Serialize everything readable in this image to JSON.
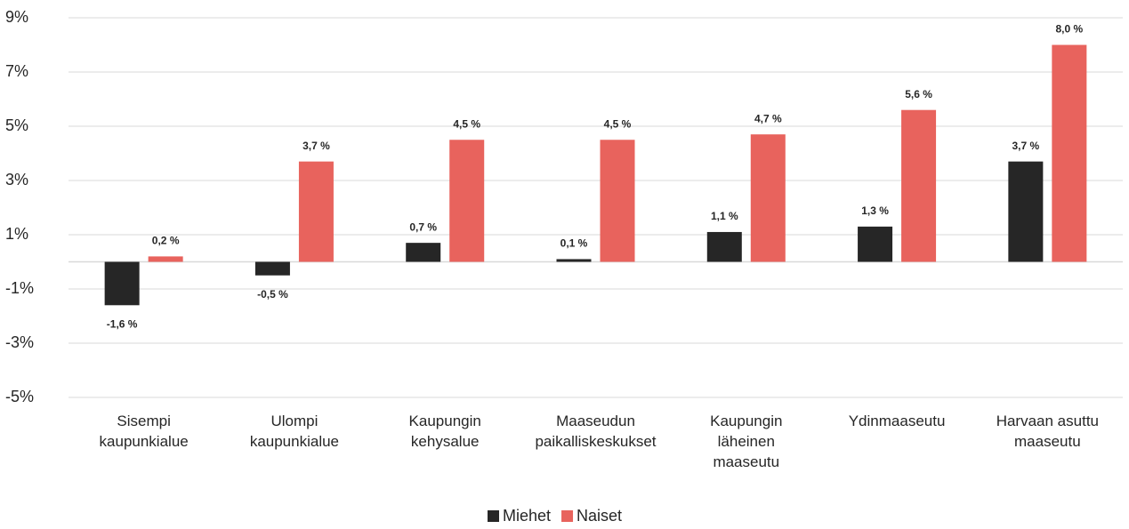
{
  "chart_data": {
    "type": "bar",
    "categories": [
      [
        "Sisempi",
        "kaupunkialue"
      ],
      [
        "Ulompi",
        "kaupunkialue"
      ],
      [
        "Kaupungin",
        "kehysalue"
      ],
      [
        "Maaseudun",
        "paikalliskeskukset"
      ],
      [
        "Kaupungin",
        "läheinen",
        "maaseutu"
      ],
      [
        "Ydinmaaseutu"
      ],
      [
        "Harvaan asuttu",
        "maaseutu"
      ]
    ],
    "series": [
      {
        "name": "Miehet",
        "color": "#262626",
        "values": [
          -1.6,
          -0.5,
          0.7,
          0.1,
          1.1,
          1.3,
          3.7
        ],
        "value_labels": [
          "-1,6 %",
          "-0,5 %",
          "0,7 %",
          "0,1 %",
          "1,1 %",
          "1,3 %",
          "3,7 %"
        ]
      },
      {
        "name": "Naiset",
        "color": "#e8635d",
        "values": [
          0.2,
          3.7,
          4.5,
          4.5,
          4.7,
          5.6,
          8.0
        ],
        "value_labels": [
          "0,2 %",
          "3,7 %",
          "4,5 %",
          "4,5 %",
          "4,7 %",
          "5,6 %",
          "8,0 %"
        ]
      }
    ],
    "ylim": [
      -5,
      9
    ],
    "yticks": [
      {
        "value": -5,
        "label": "-5%"
      },
      {
        "value": -3,
        "label": "-3%"
      },
      {
        "value": -1,
        "label": "-1%"
      },
      {
        "value": 1,
        "label": "1%"
      },
      {
        "value": 3,
        "label": "3%"
      },
      {
        "value": 5,
        "label": "5%"
      },
      {
        "value": 7,
        "label": "7%"
      },
      {
        "value": 9,
        "label": "9%"
      }
    ],
    "grid": true,
    "legend": "bottom"
  }
}
